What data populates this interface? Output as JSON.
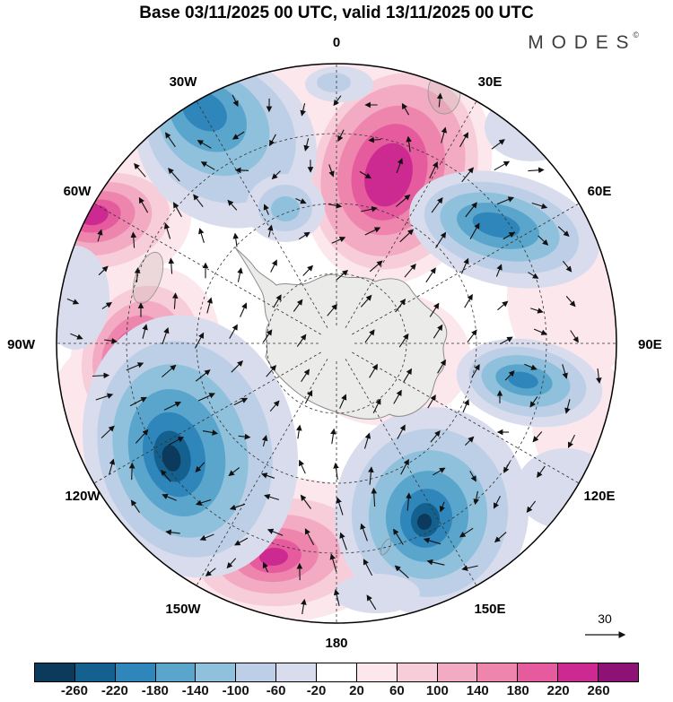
{
  "header": {
    "title": "Base 03/11/2025 00 UTC, valid 13/11/2025 00 UTC",
    "brand": "MODES",
    "brand_mark": "©"
  },
  "map": {
    "longitude_labels": [
      "0",
      "30E",
      "60E",
      "90E",
      "120E",
      "150E",
      "180",
      "150W",
      "120W",
      "90W",
      "60W",
      "30W"
    ],
    "reference_vector_label": "30"
  },
  "chart_data": {
    "type": "heatmap",
    "title": "Base 03/11/2025 00 UTC, valid 13/11/2025 00 UTC",
    "subtitle": "South polar stereographic anomaly field with wind vectors (Antarctica at center)",
    "colorbar": {
      "orientation": "horizontal",
      "ticks": [
        -260,
        -220,
        -180,
        -140,
        -100,
        -60,
        -20,
        20,
        60,
        100,
        140,
        180,
        220,
        260
      ],
      "colors": [
        "#0b3a5d",
        "#14618f",
        "#2e86ba",
        "#5aa5cc",
        "#8fc0dc",
        "#bccfe6",
        "#d8dcec",
        "#ffffff",
        "#fbe7ec",
        "#f7cdd9",
        "#f3abc4",
        "#ee85ad",
        "#e65b9d",
        "#cc2a90",
        "#8e1276"
      ]
    },
    "longitude_labels": [
      "0",
      "30E",
      "60E",
      "90E",
      "120E",
      "150E",
      "180",
      "150W",
      "120W",
      "90W",
      "60W",
      "30W"
    ],
    "reference_vector": 30,
    "anomaly_centers": [
      {
        "location": "near 20E, mid-latitudes (upper right)",
        "value": 240
      },
      {
        "location": "near 25W (upper left)",
        "value": -200
      },
      {
        "location": "near 60E (right)",
        "value": -190
      },
      {
        "location": "near 65W (left)",
        "value": 200
      },
      {
        "location": "near 90W (left)",
        "value": 210
      },
      {
        "location": "near 115W (lower left)",
        "value": -270
      },
      {
        "location": "near 170W (bottom)",
        "value": 230
      },
      {
        "location": "near 140E (lower right)",
        "value": -260
      },
      {
        "location": "near 95E (right)",
        "value": -170
      },
      {
        "location": "near 120E (right)",
        "value": -70
      }
    ]
  }
}
